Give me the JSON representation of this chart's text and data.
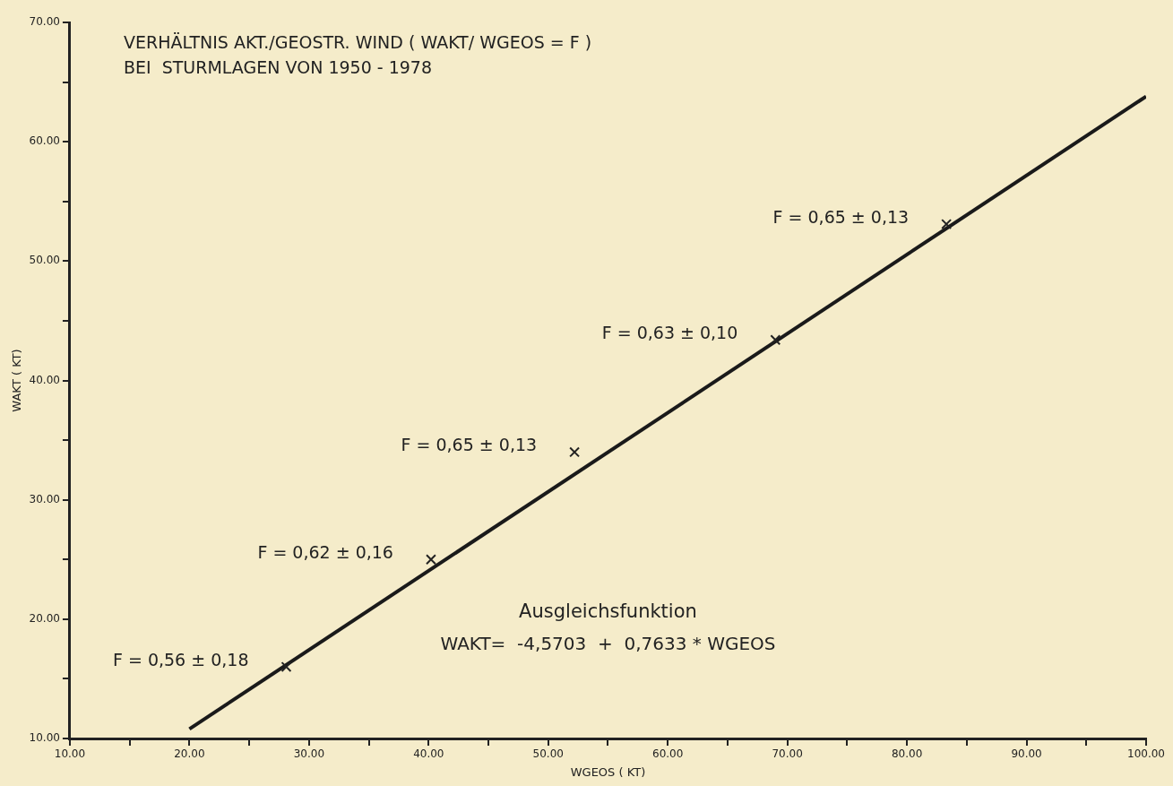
{
  "chart_data": {
    "type": "scatter",
    "title": "VERHÄLTNIS AKT./GEOSTR. WIND ( WAKT/ WGEOS = F )",
    "subtitle": "BEI  STURMLAGEN VON 1950 - 1978",
    "xlabel": "WGEOS ( KT)",
    "ylabel": "WAKT ( KT)",
    "series": [
      {
        "color": "#222222",
        "marker": "cross",
        "x": [
          28.1,
          40.2,
          52.2,
          69.0,
          83.3
        ],
        "values": [
          16.0,
          25.0,
          34.0,
          43.4,
          53.1
        ]
      },
      {
        "type": "line",
        "color": "#1a1a1a",
        "marker": "none",
        "line_style": "solid",
        "x": [
          20,
          100
        ],
        "values": [
          10.8,
          63.8
        ]
      }
    ],
    "xlim": [
      10,
      100
    ],
    "ylim": [
      10,
      70
    ],
    "xticks": [
      {
        "value": 10,
        "label": "10.00"
      },
      {
        "value": 15,
        "label": null
      },
      {
        "value": 20,
        "label": "20.00"
      },
      {
        "value": 25,
        "label": null
      },
      {
        "value": 30,
        "label": "30.00"
      },
      {
        "value": 35,
        "label": null
      },
      {
        "value": 40,
        "label": "40.00"
      },
      {
        "value": 45,
        "label": null
      },
      {
        "value": 50,
        "label": "50.00"
      },
      {
        "value": 55,
        "label": null
      },
      {
        "value": 60,
        "label": "60.00"
      },
      {
        "value": 65,
        "label": null
      },
      {
        "value": 70,
        "label": "70.00"
      },
      {
        "value": 75,
        "label": null
      },
      {
        "value": 80,
        "label": "80.00"
      },
      {
        "value": 85,
        "label": null
      },
      {
        "value": 90,
        "label": "90.00"
      },
      {
        "value": 95,
        "label": null
      },
      {
        "value": 100,
        "label": "100.00"
      }
    ],
    "yticks": [
      {
        "value": 10,
        "label": "10.00"
      },
      {
        "value": 15,
        "label": null
      },
      {
        "value": 20,
        "label": "20.00"
      },
      {
        "value": 25,
        "label": null
      },
      {
        "value": 30,
        "label": "30.00"
      },
      {
        "value": 35,
        "label": null
      },
      {
        "value": 40,
        "label": "40.00"
      },
      {
        "value": 45,
        "label": null
      },
      {
        "value": 50,
        "label": "50.00"
      },
      {
        "value": 55,
        "label": null
      },
      {
        "value": 60,
        "label": "60.00"
      },
      {
        "value": 65,
        "label": null
      },
      {
        "value": 70,
        "label": "70.00"
      }
    ],
    "grid": false,
    "legend": false,
    "annotations": [
      {
        "text": "F = 0,56 ± 0,18",
        "x": 28.1,
        "y": 16.0
      },
      {
        "text": "F = 0,62 ± 0,16",
        "x": 40.2,
        "y": 25.0
      },
      {
        "text": "F = 0,65 ± 0,13",
        "x": 52.2,
        "y": 34.0
      },
      {
        "text": "F = 0,63 ± 0,10",
        "x": 69.0,
        "y": 43.4
      },
      {
        "text": "F = 0,65 ± 0,13",
        "x": 83.3,
        "y": 53.1
      },
      "Ausgleichsfunktion",
      "WAKT=  -4,5703  +  0,7633 * WGEOS"
    ]
  }
}
